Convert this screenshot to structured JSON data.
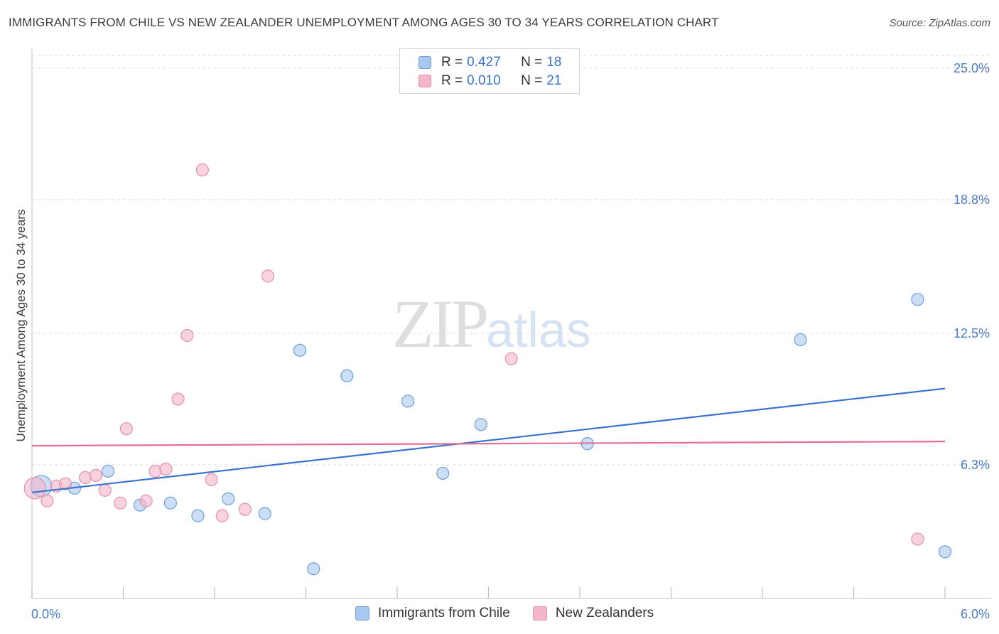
{
  "header": {
    "title": "IMMIGRANTS FROM CHILE VS NEW ZEALANDER UNEMPLOYMENT AMONG AGES 30 TO 34 YEARS CORRELATION CHART",
    "source": "Source: ZipAtlas.com"
  },
  "watermark": {
    "zip": "ZIP",
    "atlas": "atlas"
  },
  "legend_top": {
    "rows": [
      {
        "r_label": "R = ",
        "r_value": "0.427",
        "n_label": "N = ",
        "n_value": "18",
        "color": "#a8c8ef"
      },
      {
        "r_label": "R = ",
        "r_value": "0.010",
        "n_label": "N = ",
        "n_value": "21",
        "color": "#f4b6c9"
      }
    ]
  },
  "legend_bottom": {
    "items": [
      {
        "label": "Immigrants from Chile",
        "color": "#a8c8ef"
      },
      {
        "label": "New Zealanders",
        "color": "#f4b6c9"
      }
    ]
  },
  "chart_data": {
    "type": "scatter",
    "title": "IMMIGRANTS FROM CHILE VS NEW ZEALANDER UNEMPLOYMENT AMONG AGES 30 TO 34 YEARS CORRELATION CHART",
    "xlabel": "",
    "ylabel": "Unemployment Among Ages 30 to 34 years",
    "xlim": [
      0,
      6.0
    ],
    "ylim": [
      0,
      25.6
    ],
    "x_tick_labels": [
      "0.0%",
      "6.0%"
    ],
    "y_ticks": [
      6.3,
      12.5,
      18.8,
      25.0
    ],
    "y_tick_labels": [
      "6.3%",
      "12.5%",
      "18.8%",
      "25.0%"
    ],
    "series": [
      {
        "name": "Immigrants from Chile",
        "color": "#a8c8ef",
        "stroke": "#6e9fd8",
        "trend": {
          "x": [
            0,
            6.0
          ],
          "y": [
            5.0,
            9.9
          ],
          "color": "#3a74d0"
        },
        "points": [
          {
            "x": 0.06,
            "y": 5.3,
            "big": true
          },
          {
            "x": 0.28,
            "y": 5.2
          },
          {
            "x": 0.5,
            "y": 6.0
          },
          {
            "x": 0.71,
            "y": 4.4
          },
          {
            "x": 0.91,
            "y": 4.5
          },
          {
            "x": 1.09,
            "y": 3.9
          },
          {
            "x": 1.29,
            "y": 4.7
          },
          {
            "x": 1.53,
            "y": 4.0
          },
          {
            "x": 1.76,
            "y": 11.7
          },
          {
            "x": 1.85,
            "y": 1.4
          },
          {
            "x": 2.07,
            "y": 10.5
          },
          {
            "x": 2.47,
            "y": 9.3
          },
          {
            "x": 2.7,
            "y": 5.9
          },
          {
            "x": 2.95,
            "y": 8.2
          },
          {
            "x": 3.65,
            "y": 7.3
          },
          {
            "x": 5.05,
            "y": 12.2
          },
          {
            "x": 5.82,
            "y": 14.1
          },
          {
            "x": 6.0,
            "y": 2.2
          }
        ]
      },
      {
        "name": "New Zealanders",
        "color": "#f4b6c9",
        "stroke": "#e890ab",
        "trend": {
          "x": [
            0,
            6.0
          ],
          "y": [
            7.2,
            7.4
          ],
          "color": "#e46e96"
        },
        "points": [
          {
            "x": 0.02,
            "y": 5.2,
            "big": true
          },
          {
            "x": 0.1,
            "y": 4.6
          },
          {
            "x": 0.16,
            "y": 5.3
          },
          {
            "x": 0.22,
            "y": 5.4
          },
          {
            "x": 0.35,
            "y": 5.7
          },
          {
            "x": 0.42,
            "y": 5.8
          },
          {
            "x": 0.48,
            "y": 5.1
          },
          {
            "x": 0.58,
            "y": 4.5
          },
          {
            "x": 0.62,
            "y": 8.0
          },
          {
            "x": 0.75,
            "y": 4.6
          },
          {
            "x": 0.81,
            "y": 6.0
          },
          {
            "x": 0.88,
            "y": 6.1
          },
          {
            "x": 0.96,
            "y": 9.4
          },
          {
            "x": 1.02,
            "y": 12.4
          },
          {
            "x": 1.12,
            "y": 20.2
          },
          {
            "x": 1.18,
            "y": 5.6
          },
          {
            "x": 1.25,
            "y": 3.9
          },
          {
            "x": 1.4,
            "y": 4.2
          },
          {
            "x": 1.55,
            "y": 15.2
          },
          {
            "x": 3.15,
            "y": 11.3
          },
          {
            "x": 5.82,
            "y": 2.8
          }
        ]
      }
    ]
  }
}
